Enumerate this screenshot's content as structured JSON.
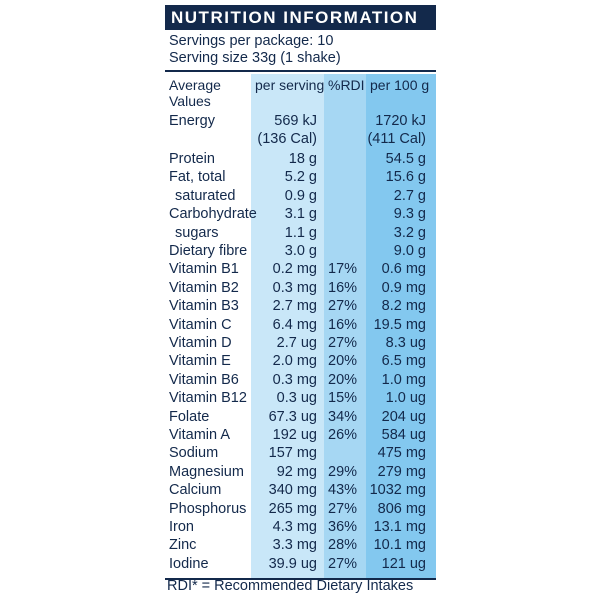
{
  "title": "NUTRITION INFORMATION",
  "servings_per_package": "Servings per package: 10",
  "serving_size": "Serving size 33g (1 shake)",
  "headers": {
    "average_values_line1": "Average",
    "average_values_line2": "Values",
    "per_serving": "per serving",
    "rdi": "%RDI",
    "per_100g": "per 100 g"
  },
  "energy": {
    "name": "Energy",
    "per_serving_kj": "569 kJ",
    "per_serving_cal": "(136 Cal)",
    "per_100g_kj": "1720 kJ",
    "per_100g_cal": "(411 Cal)"
  },
  "rows": [
    {
      "name": "Protein",
      "per_serving": "18 g",
      "rdi": "",
      "per_100g": "54.5 g",
      "sub": false
    },
    {
      "name": "Fat, total",
      "per_serving": "5.2 g",
      "rdi": "",
      "per_100g": "15.6 g",
      "sub": false
    },
    {
      "name": "saturated",
      "per_serving": "0.9 g",
      "rdi": "",
      "per_100g": "2.7 g",
      "sub": true
    },
    {
      "name": "Carbohydrate",
      "per_serving": "3.1 g",
      "rdi": "",
      "per_100g": "9.3 g",
      "sub": false
    },
    {
      "name": "sugars",
      "per_serving": "1.1 g",
      "rdi": "",
      "per_100g": "3.2 g",
      "sub": true
    },
    {
      "name": "Dietary fibre",
      "per_serving": "3.0 g",
      "rdi": "",
      "per_100g": "9.0 g",
      "sub": false
    },
    {
      "name": "Vitamin B1",
      "per_serving": "0.2 mg",
      "rdi": "17%",
      "per_100g": "0.6 mg",
      "sub": false
    },
    {
      "name": "Vitamin B2",
      "per_serving": "0.3 mg",
      "rdi": "16%",
      "per_100g": "0.9 mg",
      "sub": false
    },
    {
      "name": "Vitamin B3",
      "per_serving": "2.7 mg",
      "rdi": "27%",
      "per_100g": "8.2 mg",
      "sub": false
    },
    {
      "name": "Vitamin C",
      "per_serving": "6.4 mg",
      "rdi": "16%",
      "per_100g": "19.5 mg",
      "sub": false
    },
    {
      "name": "Vitamin D",
      "per_serving": "2.7 ug",
      "rdi": "27%",
      "per_100g": "8.3 ug",
      "sub": false
    },
    {
      "name": "Vitamin E",
      "per_serving": "2.0 mg",
      "rdi": "20%",
      "per_100g": "6.5 mg",
      "sub": false
    },
    {
      "name": "Vitamin B6",
      "per_serving": "0.3 mg",
      "rdi": "20%",
      "per_100g": "1.0 mg",
      "sub": false
    },
    {
      "name": "Vitamin B12",
      "per_serving": "0.3 ug",
      "rdi": "15%",
      "per_100g": "1.0 ug",
      "sub": false
    },
    {
      "name": "Folate",
      "per_serving": "67.3 ug",
      "rdi": "34%",
      "per_100g": "204 ug",
      "sub": false
    },
    {
      "name": "Vitamin A",
      "per_serving": "192 ug",
      "rdi": "26%",
      "per_100g": "584 ug",
      "sub": false
    },
    {
      "name": "Sodium",
      "per_serving": "157 mg",
      "rdi": "",
      "per_100g": "475 mg",
      "sub": false
    },
    {
      "name": "Magnesium",
      "per_serving": "92 mg",
      "rdi": "29%",
      "per_100g": "279 mg",
      "sub": false
    },
    {
      "name": "Calcium",
      "per_serving": "340 mg",
      "rdi": "43%",
      "per_100g": "1032 mg",
      "sub": false
    },
    {
      "name": "Phosphorus",
      "per_serving": "265 mg",
      "rdi": "27%",
      "per_100g": "806 mg",
      "sub": false
    },
    {
      "name": "Iron",
      "per_serving": "4.3 mg",
      "rdi": "36%",
      "per_100g": "13.1 mg",
      "sub": false
    },
    {
      "name": "Zinc",
      "per_serving": "3.3 mg",
      "rdi": "28%",
      "per_100g": "10.1 mg",
      "sub": false
    },
    {
      "name": "Iodine",
      "per_serving": "39.9 ug",
      "rdi": "27%",
      "per_100g": "121 ug",
      "sub": false
    }
  ],
  "footer": "RDI* = Recommended Dietary Intakes",
  "colors": {
    "navy": "#13294b",
    "per_serving_bg": "#c9e7f8",
    "rdi_bg": "#a6d7f3",
    "per_100g_bg": "#83c8ef"
  }
}
